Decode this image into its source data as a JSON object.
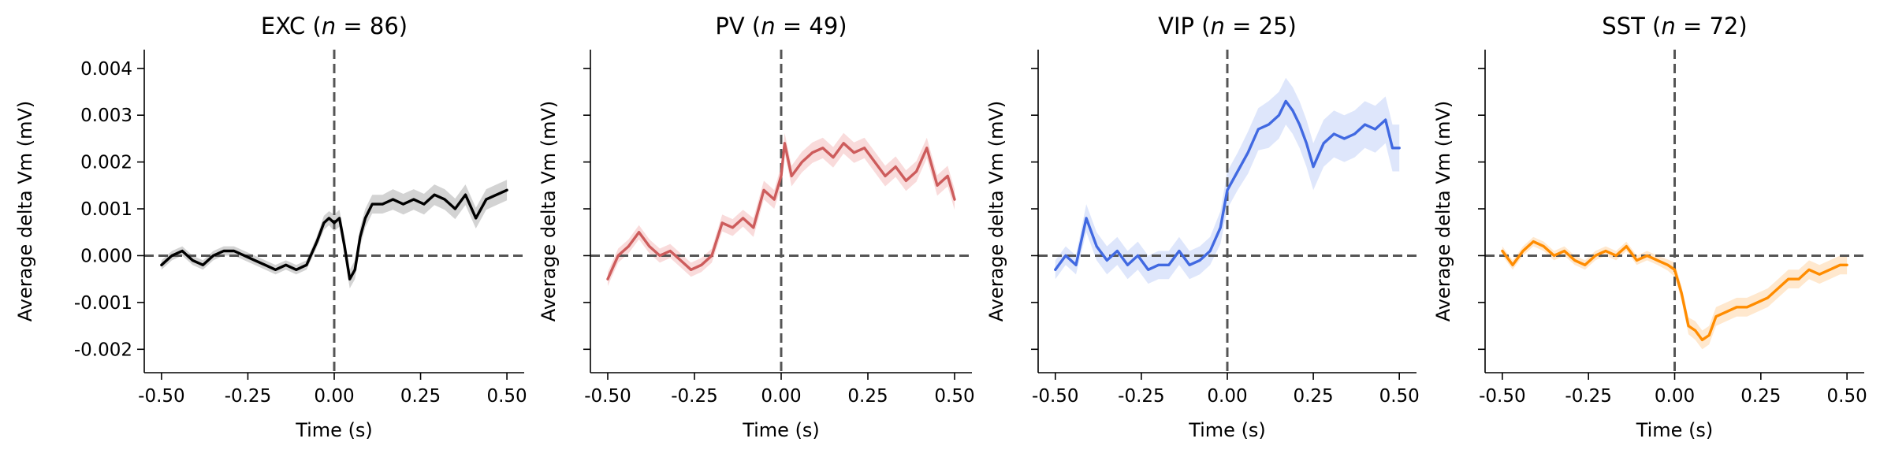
{
  "chart_data": [
    {
      "type": "line",
      "title": "EXC (n = 86)",
      "title_parts": {
        "label": "EXC",
        "n": "86"
      },
      "xlabel": "Time (s)",
      "ylabel": "Average delta Vm (mV)",
      "xlim": [
        -0.55,
        0.55
      ],
      "ylim": [
        -0.0025,
        0.0044
      ],
      "xticks": [
        -0.5,
        -0.25,
        0.0,
        0.25,
        0.5
      ],
      "xtick_labels": [
        "-0.50",
        "-0.25",
        "0.00",
        "0.25",
        "0.50"
      ],
      "yticks": [
        -0.002,
        -0.001,
        0.0,
        0.001,
        0.002,
        0.003,
        0.004
      ],
      "ytick_labels": [
        "-0.002",
        "-0.001",
        "0.000",
        "0.001",
        "0.002",
        "0.003",
        "0.004"
      ],
      "show_ytick_labels": true,
      "color": "#000000",
      "band_color": "#c8c8c8",
      "reference_lines": {
        "x": 0.0,
        "y": 0.0
      },
      "grid": false,
      "series": [
        {
          "x": [
            -0.5,
            -0.47,
            -0.44,
            -0.41,
            -0.38,
            -0.35,
            -0.32,
            -0.29,
            -0.26,
            -0.23,
            -0.2,
            -0.17,
            -0.14,
            -0.11,
            -0.08,
            -0.05,
            -0.03,
            -0.015,
            0.0,
            0.015,
            0.03,
            0.045,
            0.06,
            0.075,
            0.09,
            0.11,
            0.14,
            0.17,
            0.2,
            0.23,
            0.26,
            0.29,
            0.32,
            0.35,
            0.38,
            0.41,
            0.44,
            0.47,
            0.5
          ],
          "y": [
            -0.0002,
            0.0,
            0.0001,
            -0.0001,
            -0.0002,
            0.0,
            0.0001,
            0.0001,
            0.0,
            -0.0001,
            -0.0002,
            -0.0003,
            -0.0002,
            -0.0003,
            -0.0002,
            0.0003,
            0.0007,
            0.0008,
            0.0007,
            0.0008,
            0.0002,
            -0.0005,
            -0.0003,
            0.0004,
            0.0008,
            0.0011,
            0.0011,
            0.0012,
            0.0011,
            0.0012,
            0.0011,
            0.0013,
            0.0012,
            0.001,
            0.0013,
            0.0008,
            0.0012,
            0.0013,
            0.0014
          ],
          "error": [
            0.0001,
            0.0001,
            0.0001,
            0.0001,
            0.0001,
            0.0001,
            0.0001,
            0.0001,
            0.0001,
            0.0001,
            0.0001,
            0.0001,
            0.0001,
            0.0001,
            0.0001,
            0.00012,
            0.00015,
            0.00015,
            0.00018,
            0.00018,
            0.0002,
            0.0002,
            0.0002,
            0.0002,
            0.0002,
            0.0002,
            0.0002,
            0.00022,
            0.00022,
            0.00022,
            0.00022,
            0.00022,
            0.00022,
            0.00022,
            0.00022,
            0.00022,
            0.00022,
            0.00022,
            0.00022
          ]
        }
      ]
    },
    {
      "type": "line",
      "title": "PV (n = 49)",
      "title_parts": {
        "label": "PV",
        "n": "49"
      },
      "xlabel": "Time (s)",
      "ylabel": "Average delta Vm (mV)",
      "xlim": [
        -0.55,
        0.55
      ],
      "ylim": [
        -0.0025,
        0.0044
      ],
      "xticks": [
        -0.5,
        -0.25,
        0.0,
        0.25,
        0.5
      ],
      "xtick_labels": [
        "-0.50",
        "-0.25",
        "0.00",
        "0.25",
        "0.50"
      ],
      "yticks": [
        -0.002,
        -0.001,
        0.0,
        0.001,
        0.002,
        0.003,
        0.004
      ],
      "ytick_labels": [
        "-0.002",
        "-0.001",
        "0.000",
        "0.001",
        "0.002",
        "0.003",
        "0.004"
      ],
      "show_ytick_labels": false,
      "color": "#cd5c5c",
      "band_color": "#f7d2d2",
      "reference_lines": {
        "x": 0.0,
        "y": 0.0
      },
      "grid": false,
      "series": [
        {
          "x": [
            -0.5,
            -0.47,
            -0.44,
            -0.41,
            -0.38,
            -0.35,
            -0.32,
            -0.29,
            -0.26,
            -0.23,
            -0.2,
            -0.17,
            -0.14,
            -0.11,
            -0.08,
            -0.05,
            -0.02,
            0.0,
            0.01,
            0.03,
            0.06,
            0.09,
            0.12,
            0.15,
            0.18,
            0.21,
            0.24,
            0.27,
            0.3,
            0.33,
            0.36,
            0.39,
            0.42,
            0.45,
            0.48,
            0.5
          ],
          "y": [
            -0.0005,
            0.0,
            0.0002,
            0.0005,
            0.0002,
            0.0,
            0.0001,
            -0.0001,
            -0.0003,
            -0.0002,
            0.0,
            0.0007,
            0.0006,
            0.0008,
            0.0006,
            0.0014,
            0.0012,
            0.0017,
            0.0024,
            0.0017,
            0.002,
            0.0022,
            0.0023,
            0.0021,
            0.0024,
            0.0022,
            0.0023,
            0.002,
            0.0017,
            0.0019,
            0.0016,
            0.0018,
            0.0023,
            0.0015,
            0.0017,
            0.0012
          ],
          "error": [
            0.00015,
            0.00015,
            0.00015,
            0.00015,
            0.00015,
            0.00015,
            0.00015,
            0.00015,
            0.00015,
            0.00015,
            0.00015,
            0.00018,
            0.00018,
            0.00018,
            0.0002,
            0.0002,
            0.0002,
            0.00022,
            0.00022,
            0.00022,
            0.00022,
            0.00022,
            0.00022,
            0.00022,
            0.00022,
            0.00022,
            0.00022,
            0.00022,
            0.00022,
            0.00022,
            0.00022,
            0.00022,
            0.00022,
            0.00022,
            0.00022,
            0.00022
          ]
        }
      ]
    },
    {
      "type": "line",
      "title": "VIP (n = 25)",
      "title_parts": {
        "label": "VIP",
        "n": "25"
      },
      "xlabel": "Time (s)",
      "ylabel": "Average delta Vm (mV)",
      "xlim": [
        -0.55,
        0.55
      ],
      "ylim": [
        -0.0025,
        0.0044
      ],
      "xticks": [
        -0.5,
        -0.25,
        0.0,
        0.25,
        0.5
      ],
      "xtick_labels": [
        "-0.50",
        "-0.25",
        "0.00",
        "0.25",
        "0.50"
      ],
      "yticks": [
        -0.002,
        -0.001,
        0.0,
        0.001,
        0.002,
        0.003,
        0.004
      ],
      "ytick_labels": [
        "-0.002",
        "-0.001",
        "0.000",
        "0.001",
        "0.002",
        "0.003",
        "0.004"
      ],
      "show_ytick_labels": false,
      "color": "#4169e1",
      "band_color": "#d6e0fa",
      "reference_lines": {
        "x": 0.0,
        "y": 0.0
      },
      "grid": false,
      "series": [
        {
          "x": [
            -0.5,
            -0.47,
            -0.44,
            -0.41,
            -0.38,
            -0.35,
            -0.32,
            -0.29,
            -0.26,
            -0.23,
            -0.2,
            -0.17,
            -0.14,
            -0.11,
            -0.08,
            -0.05,
            -0.02,
            0.0,
            0.03,
            0.06,
            0.09,
            0.12,
            0.15,
            0.17,
            0.19,
            0.21,
            0.23,
            0.25,
            0.28,
            0.31,
            0.34,
            0.37,
            0.4,
            0.43,
            0.46,
            0.48,
            0.5
          ],
          "y": [
            -0.0003,
            0.0,
            -0.0002,
            0.0008,
            0.0002,
            -0.0001,
            0.0001,
            -0.0002,
            0.0,
            -0.0003,
            -0.0002,
            -0.0002,
            0.0001,
            -0.0002,
            -0.0001,
            0.0001,
            0.0006,
            0.0014,
            0.0018,
            0.0022,
            0.0027,
            0.0028,
            0.003,
            0.0033,
            0.0031,
            0.0028,
            0.0024,
            0.0019,
            0.0024,
            0.0026,
            0.0025,
            0.0026,
            0.0028,
            0.0027,
            0.0029,
            0.0023,
            0.0023
          ],
          "error": [
            0.0002,
            0.0002,
            0.0002,
            0.0003,
            0.0003,
            0.0003,
            0.0003,
            0.0003,
            0.0003,
            0.0003,
            0.0003,
            0.0003,
            0.0003,
            0.0003,
            0.0003,
            0.0003,
            0.00035,
            0.0004,
            0.0004,
            0.00045,
            0.00045,
            0.0005,
            0.0005,
            0.0005,
            0.0005,
            0.0005,
            0.0005,
            0.0005,
            0.0005,
            0.0005,
            0.0005,
            0.0005,
            0.0005,
            0.0005,
            0.0005,
            0.0005,
            0.0005
          ]
        }
      ]
    },
    {
      "type": "line",
      "title": "SST (n = 72)",
      "title_parts": {
        "label": "SST",
        "n": "72"
      },
      "xlabel": "Time (s)",
      "ylabel": "Average delta Vm (mV)",
      "xlim": [
        -0.55,
        0.55
      ],
      "ylim": [
        -0.0025,
        0.0044
      ],
      "xticks": [
        -0.5,
        -0.25,
        0.0,
        0.25,
        0.5
      ],
      "xtick_labels": [
        "-0.50",
        "-0.25",
        "0.00",
        "0.25",
        "0.50"
      ],
      "yticks": [
        -0.002,
        -0.001,
        0.0,
        0.001,
        0.002,
        0.003,
        0.004
      ],
      "ytick_labels": [
        "-0.002",
        "-0.001",
        "0.000",
        "0.001",
        "0.002",
        "0.003",
        "0.004"
      ],
      "show_ytick_labels": false,
      "color": "#ff8c00",
      "band_color": "#ffe2c2",
      "reference_lines": {
        "x": 0.0,
        "y": 0.0
      },
      "grid": false,
      "series": [
        {
          "x": [
            -0.5,
            -0.47,
            -0.44,
            -0.41,
            -0.38,
            -0.35,
            -0.32,
            -0.29,
            -0.26,
            -0.23,
            -0.2,
            -0.17,
            -0.14,
            -0.11,
            -0.08,
            -0.05,
            -0.02,
            0.0,
            0.02,
            0.04,
            0.06,
            0.08,
            0.1,
            0.12,
            0.15,
            0.18,
            0.21,
            0.24,
            0.27,
            0.3,
            0.33,
            0.36,
            0.39,
            0.42,
            0.45,
            0.48,
            0.5
          ],
          "y": [
            0.0001,
            -0.0002,
            0.0001,
            0.0003,
            0.0002,
            0.0,
            0.0001,
            -0.0001,
            -0.0002,
            0.0,
            0.0001,
            0.0,
            0.0002,
            -0.0001,
            0.0,
            -0.0001,
            -0.0002,
            -0.0003,
            -0.0008,
            -0.0015,
            -0.0016,
            -0.0018,
            -0.0017,
            -0.0013,
            -0.0012,
            -0.0011,
            -0.0011,
            -0.001,
            -0.0009,
            -0.0007,
            -0.0005,
            -0.0005,
            -0.0003,
            -0.0004,
            -0.0003,
            -0.0002,
            -0.0002
          ],
          "error": [
            0.0001,
            0.0001,
            0.0001,
            0.0001,
            0.0001,
            0.0001,
            0.0001,
            0.0001,
            0.0001,
            0.0001,
            0.0001,
            0.0001,
            0.0001,
            0.0001,
            0.0001,
            0.0001,
            0.00012,
            0.00015,
            0.00015,
            0.00018,
            0.0002,
            0.0002,
            0.0002,
            0.0002,
            0.0002,
            0.0002,
            0.0002,
            0.0002,
            0.0002,
            0.0002,
            0.0002,
            0.0002,
            0.0002,
            0.0002,
            0.0002,
            0.0002,
            0.0002
          ]
        }
      ]
    }
  ]
}
